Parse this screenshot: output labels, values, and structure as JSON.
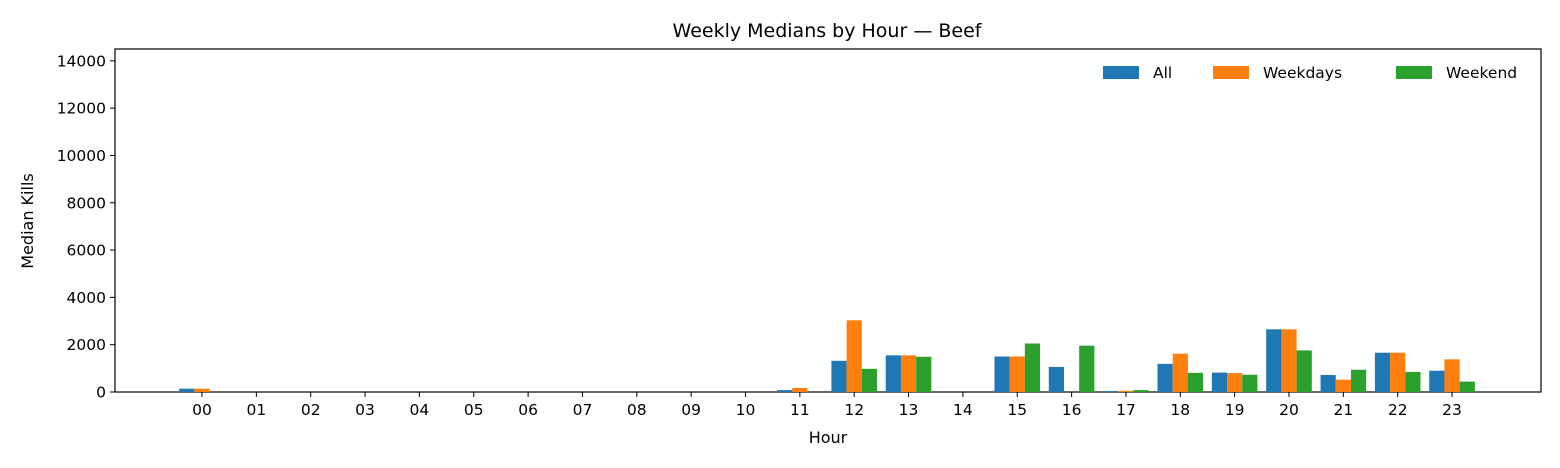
{
  "chart_data": {
    "type": "bar",
    "title": "Weekly Medians by Hour — Beef",
    "xlabel": "Hour",
    "ylabel": "Median Kills",
    "ylim": [
      0,
      14500
    ],
    "yticks": [
      0,
      2000,
      4000,
      6000,
      8000,
      10000,
      12000,
      14000
    ],
    "grid": false,
    "legend_position": "top-right",
    "categories": [
      "00",
      "01",
      "02",
      "03",
      "04",
      "05",
      "06",
      "07",
      "08",
      "09",
      "10",
      "11",
      "12",
      "13",
      "14",
      "15",
      "16",
      "17",
      "18",
      "19",
      "20",
      "21",
      "22",
      "23"
    ],
    "series": [
      {
        "name": "All",
        "color": "#1f77b4",
        "values": [
          140,
          0,
          0,
          0,
          0,
          0,
          0,
          0,
          0,
          0,
          0,
          80,
          1320,
          1550,
          0,
          1500,
          1060,
          40,
          1190,
          820,
          2650,
          720,
          1660,
          900
        ]
      },
      {
        "name": "Weekdays",
        "color": "#ff7f0e",
        "values": [
          140,
          0,
          0,
          0,
          0,
          0,
          0,
          0,
          0,
          0,
          0,
          170,
          3030,
          1550,
          0,
          1500,
          0,
          50,
          1620,
          800,
          2650,
          520,
          1660,
          1380
        ]
      },
      {
        "name": "Weekend",
        "color": "#2ca02c",
        "values": [
          0,
          0,
          0,
          0,
          0,
          0,
          0,
          0,
          0,
          0,
          0,
          0,
          980,
          1490,
          0,
          2050,
          1960,
          80,
          810,
          730,
          1760,
          940,
          850,
          440
        ]
      }
    ]
  }
}
